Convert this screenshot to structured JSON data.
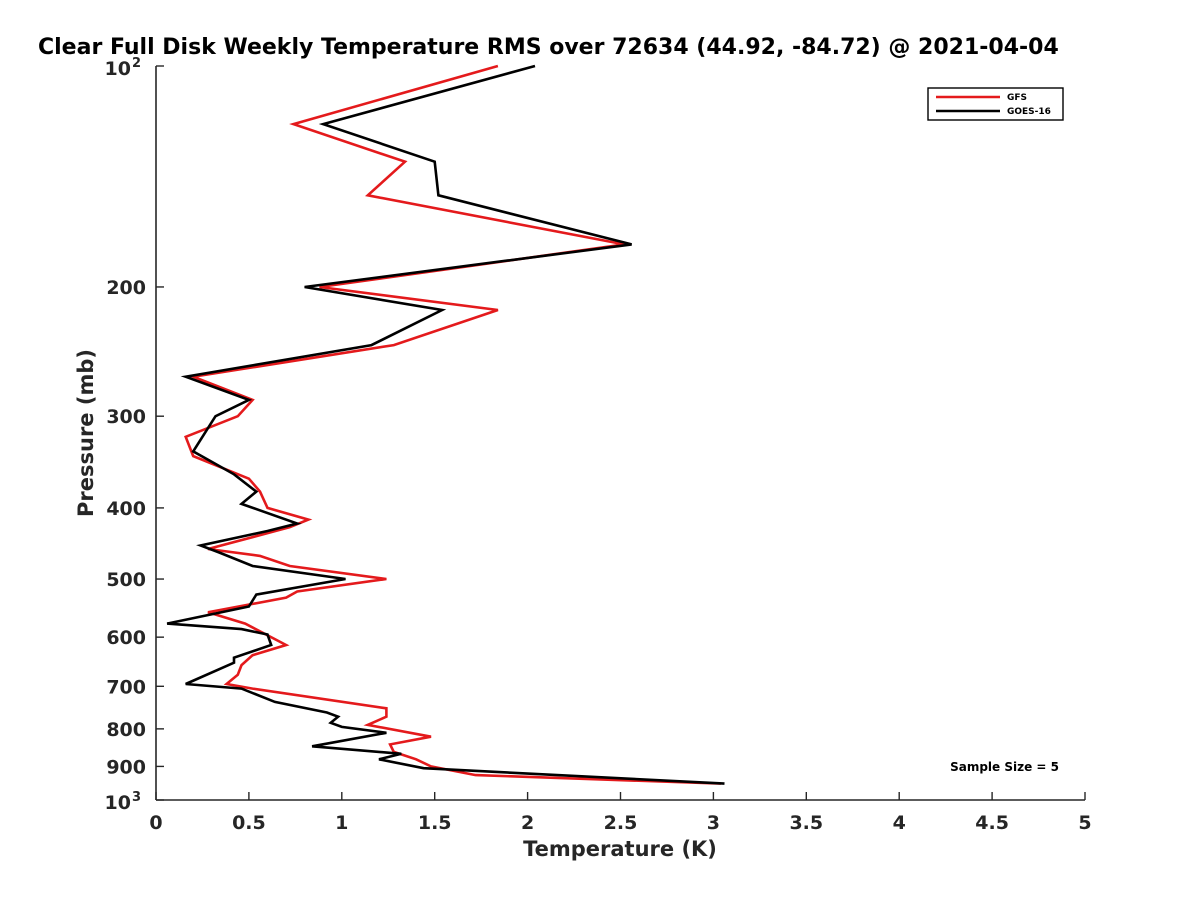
{
  "chart_data": {
    "type": "line",
    "title": "Clear Full Disk Weekly Temperature RMS over 72634 (44.92, -84.72) @ 2021-04-04",
    "xlabel": "Temperature (K)",
    "ylabel": "Pressure (mb)",
    "xlim": [
      0,
      5
    ],
    "ylim": [
      100,
      1000
    ],
    "y_scale": "log",
    "y_reversed": true,
    "x_ticks": [
      0,
      0.5,
      1,
      1.5,
      2,
      2.5,
      3,
      3.5,
      4,
      4.5,
      5
    ],
    "x_tick_labels": [
      "0",
      "0.5",
      "1",
      "1.5",
      "2",
      "2.5",
      "3",
      "3.5",
      "4",
      "4.5",
      "5"
    ],
    "y_ticks": [
      {
        "value": 100,
        "base": "10",
        "exp": "2"
      },
      {
        "value": 200,
        "label": "200"
      },
      {
        "value": 300,
        "label": "300"
      },
      {
        "value": 400,
        "label": "400"
      },
      {
        "value": 500,
        "label": "500"
      },
      {
        "value": 600,
        "label": "600"
      },
      {
        "value": 700,
        "label": "700"
      },
      {
        "value": 800,
        "label": "800"
      },
      {
        "value": 900,
        "label": "900"
      },
      {
        "value": 1000,
        "base": "10",
        "exp": "3"
      }
    ],
    "legend_position": "top-right",
    "grid": false,
    "annotation": "Sample Size = 5",
    "series": [
      {
        "name": "GFS",
        "color": "#e41a1c",
        "points": [
          [
            1.84,
            100
          ],
          [
            0.74,
            120
          ],
          [
            1.34,
            135
          ],
          [
            1.14,
            150
          ],
          [
            2.52,
            175
          ],
          [
            0.88,
            200
          ],
          [
            1.84,
            215
          ],
          [
            1.28,
            240
          ],
          [
            0.2,
            265
          ],
          [
            0.52,
            285
          ],
          [
            0.44,
            300
          ],
          [
            0.16,
            320
          ],
          [
            0.2,
            340
          ],
          [
            0.5,
            365
          ],
          [
            0.56,
            380
          ],
          [
            0.6,
            400
          ],
          [
            0.82,
            415
          ],
          [
            0.72,
            425
          ],
          [
            0.28,
            455
          ],
          [
            0.56,
            465
          ],
          [
            0.72,
            480
          ],
          [
            1.24,
            500
          ],
          [
            0.76,
            520
          ],
          [
            0.7,
            530
          ],
          [
            0.28,
            555
          ],
          [
            0.48,
            575
          ],
          [
            0.7,
            615
          ],
          [
            0.52,
            635
          ],
          [
            0.46,
            655
          ],
          [
            0.44,
            675
          ],
          [
            0.38,
            695
          ],
          [
            0.52,
            705
          ],
          [
            1.24,
            750
          ],
          [
            1.24,
            770
          ],
          [
            1.14,
            790
          ],
          [
            1.48,
            820
          ],
          [
            1.26,
            840
          ],
          [
            1.28,
            860
          ],
          [
            1.4,
            880
          ],
          [
            1.48,
            900
          ],
          [
            1.72,
            925
          ],
          [
            3.04,
            950
          ]
        ]
      },
      {
        "name": "GOES-16",
        "color": "#000000",
        "points": [
          [
            2.04,
            100
          ],
          [
            0.9,
            120
          ],
          [
            1.5,
            135
          ],
          [
            1.52,
            150
          ],
          [
            2.56,
            175
          ],
          [
            0.8,
            200
          ],
          [
            1.54,
            215
          ],
          [
            1.16,
            240
          ],
          [
            0.16,
            265
          ],
          [
            0.5,
            285
          ],
          [
            0.32,
            300
          ],
          [
            0.2,
            335
          ],
          [
            0.42,
            360
          ],
          [
            0.54,
            380
          ],
          [
            0.46,
            395
          ],
          [
            0.76,
            420
          ],
          [
            0.6,
            430
          ],
          [
            0.24,
            450
          ],
          [
            0.34,
            460
          ],
          [
            0.52,
            480
          ],
          [
            1.02,
            500
          ],
          [
            0.54,
            525
          ],
          [
            0.5,
            545
          ],
          [
            0.06,
            575
          ],
          [
            0.46,
            585
          ],
          [
            0.6,
            595
          ],
          [
            0.62,
            615
          ],
          [
            0.42,
            640
          ],
          [
            0.42,
            650
          ],
          [
            0.16,
            695
          ],
          [
            0.46,
            705
          ],
          [
            0.64,
            735
          ],
          [
            0.92,
            760
          ],
          [
            0.98,
            770
          ],
          [
            0.94,
            785
          ],
          [
            1.0,
            795
          ],
          [
            1.24,
            810
          ],
          [
            0.84,
            845
          ],
          [
            1.32,
            865
          ],
          [
            1.2,
            880
          ],
          [
            1.44,
            905
          ],
          [
            3.06,
            950
          ]
        ]
      }
    ]
  }
}
